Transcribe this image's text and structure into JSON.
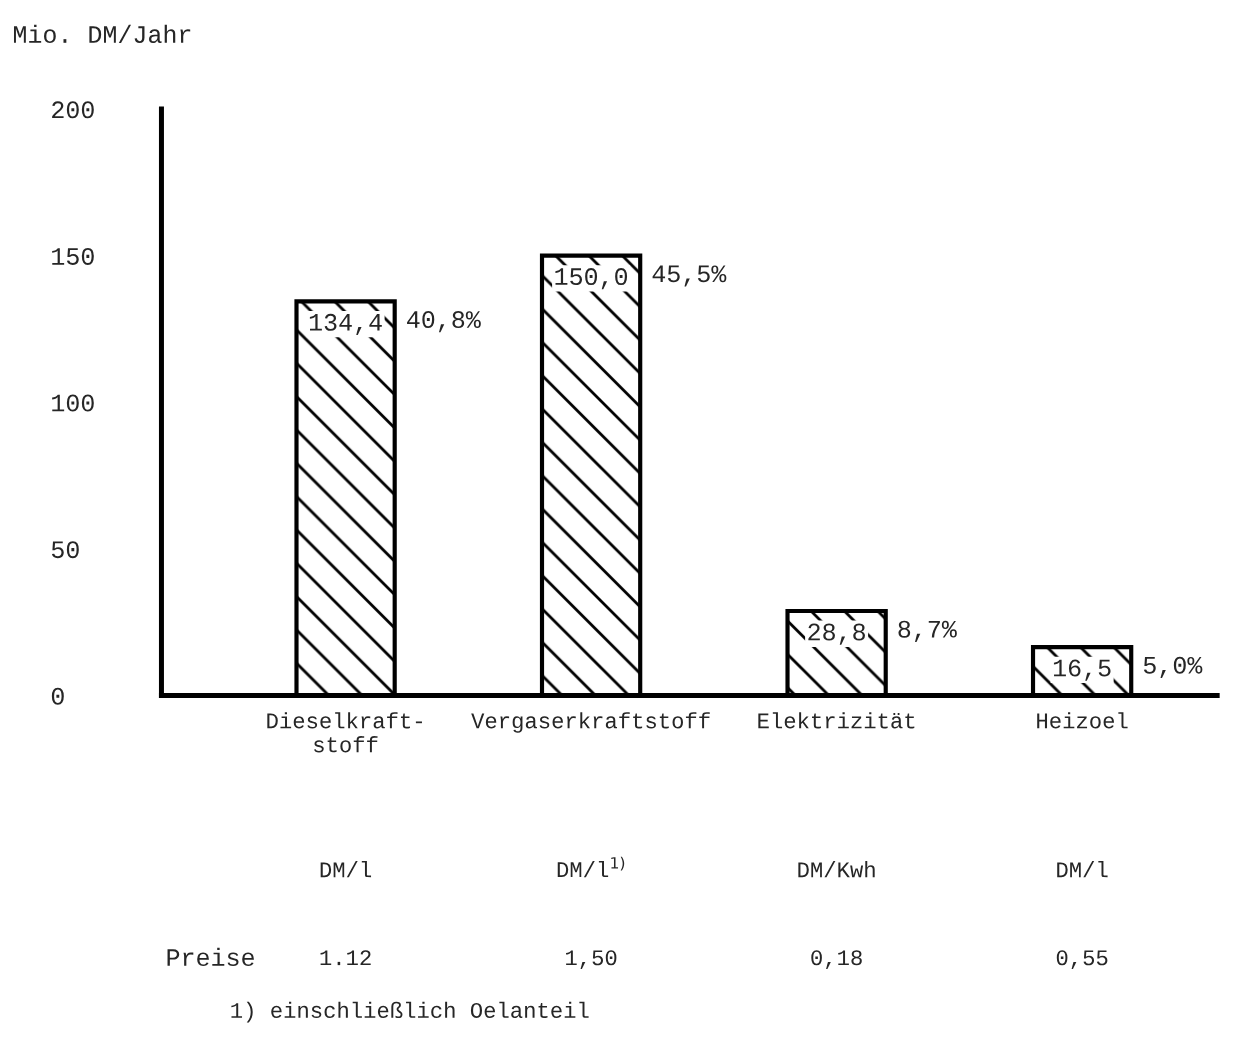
{
  "chart_data": {
    "type": "bar",
    "ylabel": "Mio. DM/Jahr",
    "categories": [
      "Dieselkraft-\nstoff",
      "Vergaserkraftstoff",
      "Elektrizität",
      "Heizoel"
    ],
    "values": [
      134.4,
      150.0,
      28.8,
      16.5
    ],
    "value_labels": [
      "134,4",
      "150,0",
      "28,8",
      "16,5"
    ],
    "color": "#000000",
    "ylim": [
      0,
      200
    ],
    "yticks": [
      0,
      50,
      100,
      150,
      200
    ],
    "grid": false,
    "legend": false,
    "annotations": [
      {
        "text": "40,8%",
        "x": "Dieselkraft-\nstoff",
        "y": 134.4
      },
      {
        "text": "45,5%",
        "x": "Vergaserkraftstoff",
        "y": 150.0
      },
      {
        "text": "8,7%",
        "x": "Elektrizität",
        "y": 28.8
      },
      {
        "text": "5,0%",
        "x": "Heizoel",
        "y": 16.5
      },
      "DM/l",
      "DM/l$^{1)}$",
      "DM/Kwh",
      "DM/l",
      "1.12",
      "1,50",
      "0,18",
      "0,55",
      "Preise",
      "1) einschließlich Oelanteil"
    ]
  }
}
